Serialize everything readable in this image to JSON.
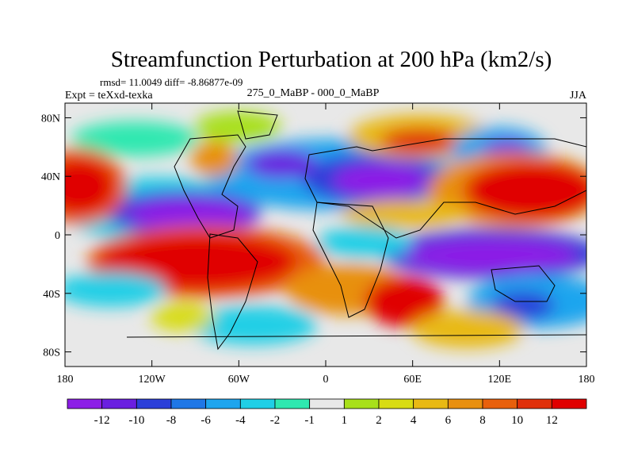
{
  "chart_data": {
    "type": "heatmap",
    "title": "Streamfunction Perturbation at 200 hPa (km2/s)",
    "stats_line": "rmsd= 11.0049 diff= -8.86877e-09",
    "left_label": "Expt = teXxd-texka",
    "center_label": "275_0_MaBP - 000_0_MaBP",
    "right_label": "JJA",
    "x_ticks": [
      {
        "value": -180,
        "label": "180"
      },
      {
        "value": -120,
        "label": "120W"
      },
      {
        "value": -60,
        "label": "60W"
      },
      {
        "value": 0,
        "label": "0"
      },
      {
        "value": 60,
        "label": "60E"
      },
      {
        "value": 120,
        "label": "120E"
      },
      {
        "value": 180,
        "label": "180"
      }
    ],
    "y_ticks": [
      {
        "value": 80,
        "label": "80N"
      },
      {
        "value": 40,
        "label": "40N"
      },
      {
        "value": 0,
        "label": "0"
      },
      {
        "value": -40,
        "label": "40S"
      },
      {
        "value": -80,
        "label": "80S"
      }
    ],
    "xlim": [
      -180,
      180
    ],
    "ylim": [
      -90,
      90
    ],
    "colorbar": {
      "colors": [
        "#8c1ee6",
        "#6a1fe0",
        "#2b3fd9",
        "#1f77e6",
        "#1ea5ee",
        "#20cfe6",
        "#2fe8b0",
        "#e8e8e8",
        "#a8e01a",
        "#d8dc14",
        "#e8b914",
        "#e89010",
        "#e8600c",
        "#e0300a",
        "#e00000"
      ],
      "tick_labels": [
        "-12",
        "-10",
        "-8",
        "-6",
        "-4",
        "-2",
        "-1",
        "1",
        "2",
        "4",
        "6",
        "8",
        "10",
        "12"
      ]
    }
  }
}
